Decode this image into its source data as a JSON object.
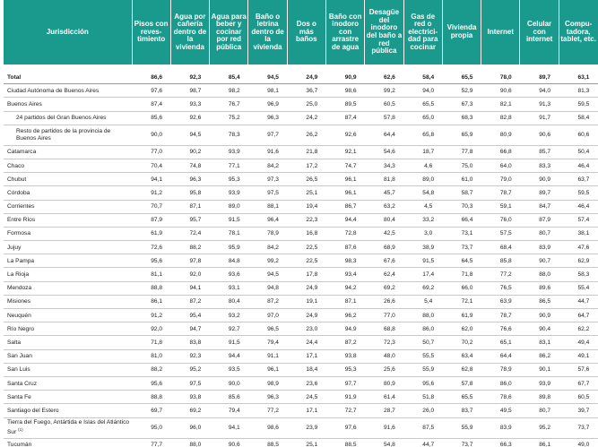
{
  "headers": [
    "Jurisdicción",
    "Pisos con reves­timiento",
    "Agua por cañería dentro de la vivienda",
    "Agua para beber y cocinar por red pública",
    "Baño o letrina dentro de la vivienda",
    "Dos o más baños",
    "Baño con inodoro con arrastre de agua",
    "Desagüe del inodoro del baño a red pública",
    "Gas de red o electrici­dad para cocinar",
    "Vivienda propia",
    "Internet",
    "Celular con internet",
    "Compu­tadora, tablet, etc."
  ],
  "rows": [
    {
      "name": "Total",
      "values": [
        "86,6",
        "92,3",
        "85,4",
        "94,5",
        "24,9",
        "90,9",
        "62,6",
        "58,4",
        "65,5",
        "78,0",
        "89,7",
        "63,1"
      ]
    },
    {
      "name": "Ciudad Autónoma de Buenos Aires",
      "values": [
        "97,6",
        "98,7",
        "98,2",
        "98,1",
        "36,7",
        "98,6",
        "99,2",
        "94,0",
        "52,9",
        "90,6",
        "94,0",
        "81,3"
      ]
    },
    {
      "name": "Buenos Aires",
      "values": [
        "87,4",
        "93,3",
        "76,7",
        "96,9",
        "25,0",
        "89,5",
        "60,5",
        "65,5",
        "67,3",
        "82,1",
        "91,3",
        "59,5"
      ]
    },
    {
      "name": "24 partidos del Gran Buenos Aires",
      "values": [
        "85,6",
        "92,6",
        "75,2",
        "96,3",
        "24,2",
        "87,4",
        "57,8",
        "65,0",
        "68,3",
        "82,8",
        "91,7",
        "58,4"
      ]
    },
    {
      "name": "Resto de partidos de la provincia de Buenos Aires",
      "values": [
        "90,0",
        "94,5",
        "78,3",
        "97,7",
        "26,2",
        "92,6",
        "64,4",
        "65,8",
        "65,9",
        "80,9",
        "90,6",
        "60,6"
      ]
    },
    {
      "name": "Catamarca",
      "values": [
        "77,0",
        "90,2",
        "93,9",
        "91,6",
        "21,8",
        "92,1",
        "54,6",
        "18,7",
        "77,8",
        "66,8",
        "85,7",
        "50,4"
      ]
    },
    {
      "name": "Chaco",
      "values": [
        "70,4",
        "74,8",
        "77,1",
        "84,2",
        "17,2",
        "74,7",
        "34,3",
        "4,6",
        "75,0",
        "64,0",
        "83,3",
        "46,4"
      ]
    },
    {
      "name": "Chubut",
      "values": [
        "94,1",
        "96,3",
        "95,3",
        "97,3",
        "26,5",
        "96,1",
        "81,8",
        "89,0",
        "61,0",
        "79,0",
        "90,9",
        "63,7"
      ]
    },
    {
      "name": "Córdoba",
      "values": [
        "91,2",
        "95,8",
        "93,9",
        "97,5",
        "25,1",
        "96,1",
        "45,7",
        "54,8",
        "58,7",
        "78,7",
        "89,7",
        "59,5"
      ]
    },
    {
      "name": "Corrientes",
      "values": [
        "70,7",
        "87,1",
        "89,0",
        "88,1",
        "19,4",
        "86,7",
        "63,2",
        "4,5",
        "70,3",
        "59,1",
        "84,7",
        "46,4"
      ]
    },
    {
      "name": "Entre Ríos",
      "values": [
        "87,9",
        "95,7",
        "91,5",
        "96,4",
        "22,3",
        "94,4",
        "80,4",
        "33,2",
        "66,4",
        "76,0",
        "87,9",
        "57,4"
      ]
    },
    {
      "name": "Formosa",
      "values": [
        "61,9",
        "72,4",
        "78,1",
        "78,9",
        "16,8",
        "72,8",
        "42,5",
        "3,0",
        "73,1",
        "57,5",
        "80,7",
        "38,1"
      ]
    },
    {
      "name": "Jujuy",
      "values": [
        "72,6",
        "88,2",
        "95,9",
        "84,2",
        "22,5",
        "87,6",
        "68,9",
        "38,9",
        "73,7",
        "68,4",
        "83,9",
        "47,6"
      ]
    },
    {
      "name": "La Pampa",
      "values": [
        "95,6",
        "97,8",
        "84,8",
        "99,2",
        "22,5",
        "98,3",
        "67,6",
        "91,5",
        "64,5",
        "85,8",
        "90,7",
        "62,9"
      ]
    },
    {
      "name": "La Rioja",
      "values": [
        "81,1",
        "92,0",
        "93,6",
        "94,5",
        "17,8",
        "93,4",
        "62,4",
        "17,4",
        "71,8",
        "77,2",
        "88,0",
        "58,3"
      ]
    },
    {
      "name": "Mendoza",
      "values": [
        "88,8",
        "94,1",
        "93,1",
        "94,8",
        "24,9",
        "94,2",
        "69,2",
        "69,2",
        "66,0",
        "76,5",
        "89,6",
        "55,4"
      ]
    },
    {
      "name": "Misiones",
      "values": [
        "86,1",
        "87,2",
        "80,4",
        "87,2",
        "19,1",
        "87,1",
        "26,6",
        "5,4",
        "72,1",
        "63,9",
        "86,5",
        "44,7"
      ]
    },
    {
      "name": "Neuquén",
      "values": [
        "91,2",
        "95,4",
        "93,2",
        "97,0",
        "24,9",
        "96,2",
        "77,0",
        "88,0",
        "61,9",
        "78,7",
        "90,9",
        "64,7"
      ]
    },
    {
      "name": "Río Negro",
      "values": [
        "92,0",
        "94,7",
        "92,7",
        "96,5",
        "23,0",
        "94,9",
        "68,8",
        "86,0",
        "62,0",
        "76,6",
        "90,4",
        "62,2"
      ]
    },
    {
      "name": "Salta",
      "values": [
        "71,8",
        "83,8",
        "91,5",
        "79,4",
        "24,4",
        "87,2",
        "72,3",
        "50,7",
        "70,2",
        "65,1",
        "83,1",
        "49,4"
      ]
    },
    {
      "name": "San Juan",
      "values": [
        "81,0",
        "92,3",
        "94,4",
        "91,1",
        "17,1",
        "93,8",
        "48,0",
        "55,5",
        "63,4",
        "64,4",
        "86,2",
        "49,1"
      ]
    },
    {
      "name": "San Luis",
      "values": [
        "88,2",
        "95,2",
        "93,5",
        "96,1",
        "18,4",
        "95,3",
        "25,6",
        "55,9",
        "62,8",
        "78,9",
        "90,1",
        "57,6"
      ]
    },
    {
      "name": "Santa Cruz",
      "values": [
        "95,6",
        "97,5",
        "90,0",
        "98,9",
        "23,6",
        "97,7",
        "80,9",
        "95,6",
        "57,8",
        "86,0",
        "93,9",
        "67,7"
      ]
    },
    {
      "name": "Santa Fe",
      "values": [
        "88,8",
        "93,8",
        "85,6",
        "96,3",
        "24,5",
        "91,9",
        "61,4",
        "51,8",
        "65,5",
        "78,6",
        "89,8",
        "60,5"
      ]
    },
    {
      "name": "Santiago del Estero",
      "values": [
        "69,7",
        "69,2",
        "79,4",
        "77,2",
        "17,1",
        "72,7",
        "28,7",
        "26,0",
        "83,7",
        "49,5",
        "80,7",
        "39,7"
      ]
    },
    {
      "name": "Tierra del Fuego, Antártida e Islas del Atlántico Sur",
      "sup": "(1)",
      "values": [
        "95,0",
        "96,0",
        "94,1",
        "98,6",
        "23,9",
        "97,6",
        "91,6",
        "87,5",
        "55,9",
        "83,9",
        "95,2",
        "73,7"
      ]
    },
    {
      "name": "Tucumán",
      "values": [
        "77,7",
        "88,0",
        "90,6",
        "88,5",
        "25,1",
        "88,5",
        "54,8",
        "44,7",
        "73,7",
        "66,3",
        "86,1",
        "49,0"
      ]
    }
  ]
}
